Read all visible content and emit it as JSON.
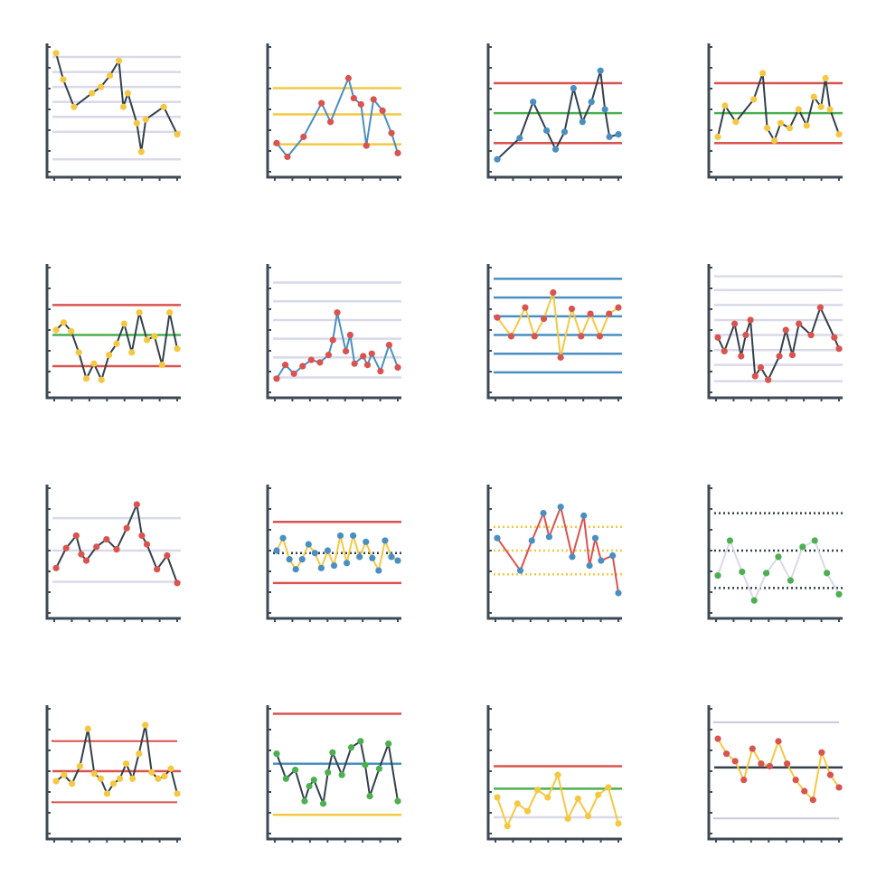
{
  "palette": {
    "axis": "#3d4a55",
    "red": "#d9534f",
    "green": "#4caf50",
    "yellow": "#f5c842",
    "blue": "#4a8fc2",
    "lavender": "#d9d9ea",
    "dark": "#33404b",
    "gray": "#c9cbdc"
  },
  "chart_data": [
    {
      "type": "line",
      "line_color": "dark",
      "point_color": "yellow",
      "ylim": [
        0,
        10
      ],
      "refs": [
        {
          "y": 9.2,
          "color": "lavender"
        },
        {
          "y": 8.0,
          "color": "lavender"
        },
        {
          "y": 6.8,
          "color": "lavender"
        },
        {
          "y": 5.6,
          "color": "lavender"
        },
        {
          "y": 4.4,
          "color": "lavender"
        },
        {
          "y": 3.2,
          "color": "lavender"
        },
        {
          "y": 1.0,
          "color": "lavender"
        }
      ],
      "x": [
        0,
        0.8,
        2,
        4,
        5,
        6,
        7,
        7.5,
        8,
        9,
        9.5,
        10,
        12,
        13.5
      ],
      "y": [
        9.5,
        7.4,
        5.2,
        6.3,
        6.8,
        7.7,
        8.9,
        5.2,
        6.3,
        3.9,
        1.6,
        4.2,
        5.2,
        3.0
      ]
    },
    {
      "type": "line",
      "line_color": "blue",
      "point_color": "red",
      "ylim": [
        0,
        10
      ],
      "refs": [
        {
          "y": 6.7,
          "color": "yellow"
        },
        {
          "y": 4.6,
          "color": "yellow"
        },
        {
          "y": 2.2,
          "color": "yellow"
        }
      ],
      "x": [
        0,
        1.2,
        3,
        5,
        6,
        8,
        8.6,
        9.4,
        10,
        10.8,
        11.8,
        12.8,
        13.5
      ],
      "y": [
        2.3,
        1.2,
        2.8,
        5.5,
        4.0,
        7.5,
        5.9,
        5.4,
        2.1,
        5.8,
        4.9,
        3.1,
        1.5
      ]
    },
    {
      "type": "line",
      "line_color": "dark",
      "point_color": "blue",
      "ylim": [
        0,
        10
      ],
      "refs": [
        {
          "y": 7.1,
          "color": "red"
        },
        {
          "y": 4.7,
          "color": "green"
        },
        {
          "y": 2.3,
          "color": "red"
        }
      ],
      "x": [
        0,
        2.5,
        4,
        5.5,
        6.5,
        7.5,
        8.5,
        9.5,
        10.5,
        11.5,
        12,
        12.5,
        13.5
      ],
      "y": [
        1.0,
        2.7,
        5.6,
        3.3,
        1.8,
        3.2,
        6.7,
        4.0,
        5.6,
        8.1,
        5.0,
        2.8,
        3.0
      ]
    },
    {
      "type": "line",
      "line_color": "dark",
      "point_color": "yellow",
      "ylim": [
        0,
        10
      ],
      "refs": [
        {
          "y": 7.1,
          "color": "red"
        },
        {
          "y": 4.7,
          "color": "green"
        },
        {
          "y": 2.3,
          "color": "red"
        }
      ],
      "x": [
        0,
        0.8,
        2,
        4,
        5,
        5.5,
        6.3,
        7,
        8,
        9,
        9.9,
        10.7,
        11.5,
        12,
        12.5,
        13.5
      ],
      "y": [
        2.8,
        5.3,
        4.0,
        5.8,
        7.9,
        3.5,
        2.5,
        3.9,
        3.5,
        5.0,
        3.7,
        6.0,
        5.2,
        7.5,
        5.0,
        3.0
      ]
    },
    {
      "type": "line",
      "line_color": "dark",
      "point_color": "yellow",
      "ylim": [
        0,
        10
      ],
      "refs": [
        {
          "y": 7.0,
          "color": "red"
        },
        {
          "y": 4.6,
          "color": "green"
        },
        {
          "y": 2.1,
          "color": "red"
        }
      ],
      "x": [
        0,
        1,
        2,
        3,
        4,
        5,
        6,
        7,
        8,
        9,
        10,
        11,
        12,
        13,
        14,
        15,
        16
      ],
      "y": [
        5.0,
        5.6,
        4.9,
        3.2,
        1.1,
        2.3,
        1.0,
        3.0,
        3.9,
        5.5,
        3.2,
        6.4,
        4.2,
        4.5,
        2.2,
        6.4,
        3.5
      ]
    },
    {
      "type": "line",
      "line_color": "blue",
      "point_color": "red",
      "ylim": [
        0,
        10
      ],
      "refs": [
        {
          "y": 8.8,
          "color": "lavender"
        },
        {
          "y": 7.3,
          "color": "lavender"
        },
        {
          "y": 5.8,
          "color": "lavender"
        },
        {
          "y": 4.3,
          "color": "lavender"
        },
        {
          "y": 2.8,
          "color": "lavender"
        },
        {
          "y": 1.2,
          "color": "lavender"
        }
      ],
      "x": [
        0,
        1,
        2,
        3,
        4,
        5,
        6,
        6.5,
        7,
        8,
        8.5,
        9,
        10,
        10.5,
        11,
        12,
        13,
        14
      ],
      "y": [
        1.1,
        2.2,
        1.5,
        2.1,
        2.6,
        2.4,
        3.0,
        4.2,
        6.4,
        3.3,
        4.6,
        2.3,
        2.9,
        2.2,
        3.1,
        1.7,
        3.8,
        2.0
      ]
    },
    {
      "type": "line",
      "line_color": "yellow",
      "point_color": "red",
      "ylim": [
        0,
        10
      ],
      "refs": [
        {
          "y": 9.1,
          "color": "blue"
        },
        {
          "y": 7.6,
          "color": "blue"
        },
        {
          "y": 6.1,
          "color": "blue"
        },
        {
          "y": 4.6,
          "color": "blue"
        },
        {
          "y": 3.1,
          "color": "blue"
        },
        {
          "y": 1.6,
          "color": "blue"
        }
      ],
      "x": [
        0,
        1.5,
        3,
        4,
        5,
        6,
        6.8,
        8,
        9,
        10,
        11,
        12,
        13
      ],
      "y": [
        6.0,
        4.5,
        6.8,
        4.5,
        5.9,
        8.0,
        2.8,
        6.7,
        4.5,
        6.3,
        4.5,
        6.3,
        6.8
      ]
    },
    {
      "type": "line",
      "line_color": "dark",
      "point_color": "red",
      "ylim": [
        0,
        10
      ],
      "refs": [
        {
          "y": 9.3,
          "color": "lavender"
        },
        {
          "y": 8.2,
          "color": "lavender"
        },
        {
          "y": 7.0,
          "color": "lavender"
        },
        {
          "y": 5.8,
          "color": "lavender"
        },
        {
          "y": 4.6,
          "color": "lavender"
        },
        {
          "y": 3.4,
          "color": "lavender"
        },
        {
          "y": 2.2,
          "color": "lavender"
        },
        {
          "y": 0.9,
          "color": "lavender"
        }
      ],
      "x": [
        0,
        0.7,
        1.8,
        2.5,
        3,
        3.5,
        4,
        4.6,
        5.4,
        6.6,
        7.3,
        8,
        8.7,
        10,
        11,
        12.5,
        13
      ],
      "y": [
        4.4,
        3.3,
        5.5,
        2.9,
        4.6,
        5.8,
        1.3,
        2.0,
        1.0,
        2.9,
        5.0,
        3.0,
        5.5,
        4.6,
        6.8,
        4.4,
        3.5
      ]
    },
    {
      "type": "line",
      "line_color": "dark",
      "point_color": "red",
      "ylim": [
        0,
        10
      ],
      "refs": [
        {
          "y": 7.6,
          "color": "lavender"
        },
        {
          "y": 5.0,
          "color": "lavender"
        },
        {
          "y": 2.5,
          "color": "lavender"
        }
      ],
      "x": [
        0,
        1,
        2,
        2.5,
        3,
        4,
        5,
        6,
        7,
        8,
        8.5,
        9,
        10,
        11,
        12
      ],
      "y": [
        3.6,
        5.2,
        6.2,
        4.7,
        4.2,
        5.3,
        5.9,
        5.1,
        6.8,
        8.7,
        6.2,
        5.5,
        3.5,
        4.6,
        2.4
      ]
    },
    {
      "type": "line",
      "line_color": "yellow",
      "point_color": "blue",
      "ylim": [
        0,
        10
      ],
      "refs": [
        {
          "y": 7.3,
          "color": "red"
        },
        {
          "y": 4.8,
          "color": "dark",
          "dotted": true
        },
        {
          "y": 2.4,
          "color": "red"
        }
      ],
      "x": [
        0,
        0.8,
        1.6,
        2.4,
        3.2,
        4,
        4.8,
        5.6,
        6.4,
        7.2,
        8,
        8.8,
        9.6,
        10.4,
        11.2,
        12,
        12.8,
        13.6,
        14.4,
        15.2
      ],
      "y": [
        5.0,
        6.0,
        4.3,
        3.5,
        4.3,
        5.5,
        4.8,
        3.6,
        5.0,
        3.8,
        6.2,
        4.0,
        6.2,
        4.5,
        5.7,
        4.4,
        3.4,
        5.8,
        4.5,
        4.2
      ]
    },
    {
      "type": "line",
      "line_color": "red",
      "point_color": "blue",
      "ylim": [
        0,
        10
      ],
      "refs": [
        {
          "y": 6.9,
          "color": "yellow",
          "dotted": true
        },
        {
          "y": 5.0,
          "color": "yellow",
          "dotted": true
        },
        {
          "y": 3.1,
          "color": "yellow",
          "dotted": true
        }
      ],
      "x": [
        0,
        2,
        3,
        4,
        4.5,
        5.5,
        6.5,
        7.5,
        8,
        8.5,
        9,
        10,
        10.5
      ],
      "y": [
        6.0,
        3.4,
        5.8,
        8.0,
        6.1,
        8.5,
        4.5,
        7.8,
        3.8,
        6.0,
        4.2,
        4.6,
        1.6
      ]
    },
    {
      "type": "line",
      "line_color": "lavender",
      "point_color": "green",
      "ylim": [
        0,
        10
      ],
      "refs": [
        {
          "y": 8.0,
          "color": "dark",
          "dotted": true
        },
        {
          "y": 5.0,
          "color": "dark",
          "dotted": true
        },
        {
          "y": 2.0,
          "color": "dark",
          "dotted": true
        }
      ],
      "x": [
        0,
        1,
        2,
        3,
        4,
        5,
        6,
        7,
        8,
        9,
        10
      ],
      "y": [
        3.0,
        5.8,
        3.3,
        1.0,
        3.2,
        4.5,
        2.6,
        5.3,
        5.8,
        3.2,
        1.5
      ]
    },
    {
      "type": "line",
      "line_color": "dark",
      "point_color": "yellow",
      "ylim": [
        0,
        10
      ],
      "refs": [
        {
          "y": 7.5,
          "color": "red",
          "wavy": true
        },
        {
          "y": 5.0,
          "color": "red"
        },
        {
          "y": 2.6,
          "color": "red",
          "wavy": true
        }
      ],
      "x": [
        0,
        1,
        2,
        3,
        4,
        4.8,
        5.6,
        6.4,
        7.2,
        8,
        8.8,
        9.6,
        10.4,
        11.2,
        12,
        12.8,
        13.6,
        14.4,
        15.2
      ],
      "y": [
        4.2,
        4.7,
        4.0,
        5.4,
        8.4,
        4.8,
        4.4,
        3.2,
        4.0,
        4.4,
        5.6,
        4.4,
        6.4,
        8.7,
        4.9,
        4.4,
        4.6,
        5.2,
        3.2
      ]
    },
    {
      "type": "line",
      "line_color": "dark",
      "point_color": "green",
      "ylim": [
        0,
        10
      ],
      "refs": [
        {
          "y": 9.6,
          "color": "red"
        },
        {
          "y": 5.6,
          "color": "blue"
        },
        {
          "y": 1.5,
          "color": "yellow"
        }
      ],
      "x": [
        0,
        1,
        2,
        3,
        3.5,
        4,
        5,
        5.5,
        6,
        7,
        8,
        9,
        9.5,
        10,
        11,
        12,
        13
      ],
      "y": [
        6.4,
        4.4,
        5.1,
        2.6,
        3.8,
        4.3,
        2.4,
        4.9,
        6.5,
        4.7,
        6.9,
        7.4,
        5.5,
        3.0,
        5.2,
        7.2,
        2.6
      ]
    },
    {
      "type": "line",
      "line_color": "yellow",
      "point_color": "yellow",
      "ylim": [
        0,
        10
      ],
      "refs": [
        {
          "y": 5.4,
          "color": "red"
        },
        {
          "y": 3.6,
          "color": "green"
        },
        {
          "y": 1.3,
          "color": "lavender"
        }
      ],
      "x": [
        0,
        1,
        2,
        3,
        4,
        5,
        6,
        7,
        8,
        9,
        10,
        11,
        12
      ],
      "y": [
        2.9,
        0.6,
        2.4,
        1.8,
        3.5,
        2.9,
        4.7,
        1.2,
        2.8,
        1.4,
        3.1,
        3.7,
        0.8
      ]
    },
    {
      "type": "line",
      "line_color": "yellow",
      "point_color": "red",
      "ylim": [
        0,
        10
      ],
      "refs": [
        {
          "y": 9.0,
          "color": "gray",
          "wavy": true
        },
        {
          "y": 5.3,
          "color": "dark"
        },
        {
          "y": 1.3,
          "color": "gray",
          "wavy": true
        }
      ],
      "x": [
        0,
        1,
        2,
        3,
        4,
        5,
        6,
        7,
        8,
        9,
        10,
        11,
        12,
        13,
        14
      ],
      "y": [
        7.6,
        6.4,
        5.8,
        4.3,
        6.8,
        5.6,
        5.4,
        7.4,
        5.6,
        4.3,
        3.4,
        2.7,
        6.5,
        4.7,
        3.7
      ]
    }
  ]
}
